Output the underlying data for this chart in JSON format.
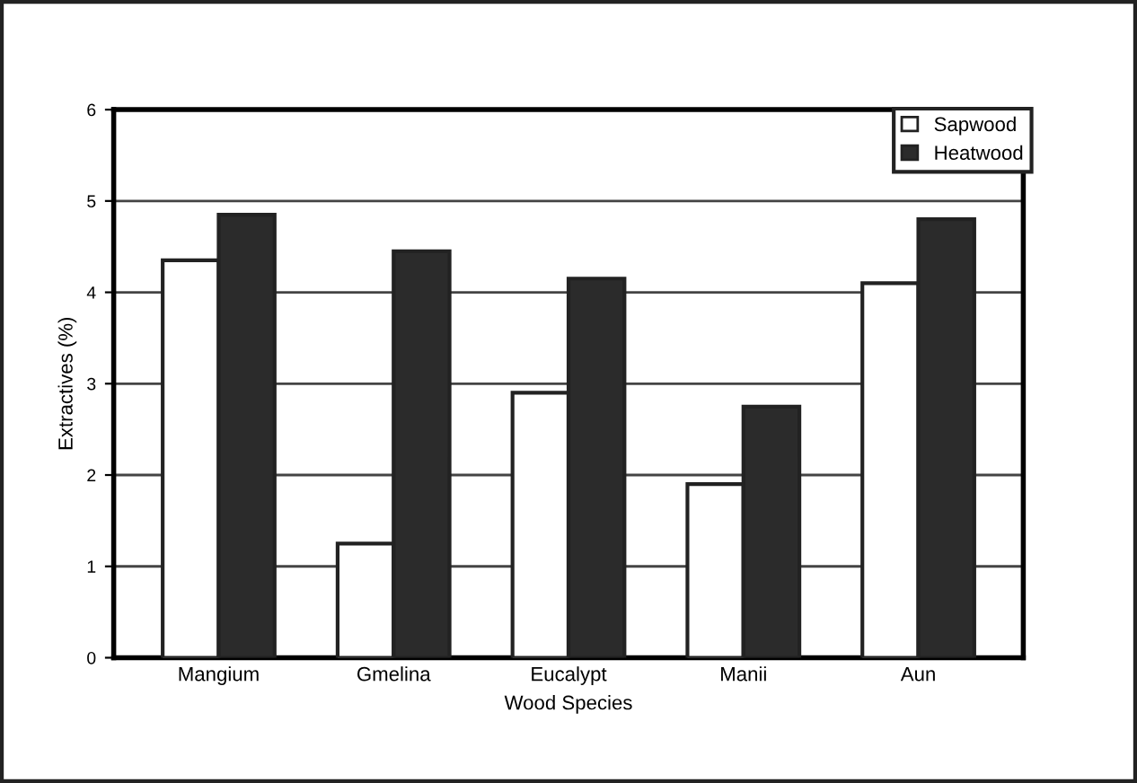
{
  "chart_data": {
    "type": "bar",
    "xlabel": "Wood Species",
    "ylabel": "Extractives (%)",
    "categories": [
      "Mangium",
      "Gmelina",
      "Eucalypt",
      "Manii",
      "Aun"
    ],
    "series": [
      {
        "name": "Sapwood",
        "color": "#ffffff",
        "values": [
          4.35,
          1.25,
          2.9,
          1.9,
          4.1
        ]
      },
      {
        "name": "Heatwood",
        "color": "#2b2b2b",
        "values": [
          4.85,
          4.45,
          4.15,
          2.75,
          4.8
        ]
      }
    ],
    "ylim": [
      0,
      6
    ],
    "yticks": [
      0,
      1,
      2,
      3,
      4,
      5,
      6
    ],
    "grid": "y",
    "legend": "top right"
  }
}
